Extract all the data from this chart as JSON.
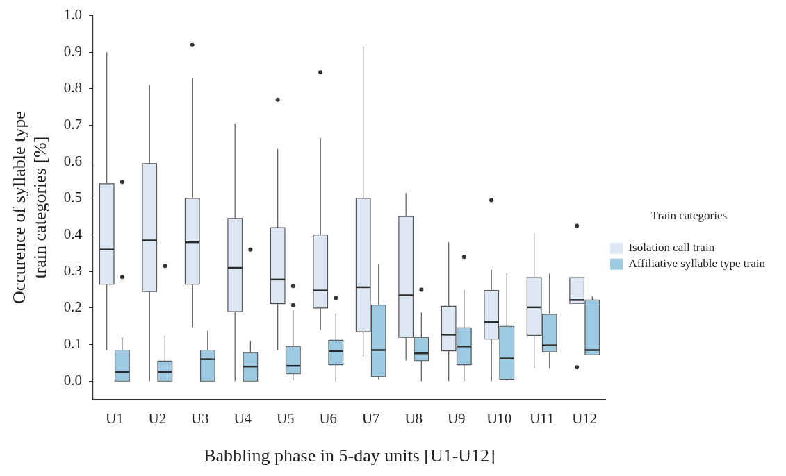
{
  "chart_data": {
    "type": "box",
    "xlabel": "Babbling phase in 5-day units [U1-U12]",
    "ylabel": "Occurence of syllable type train categories [%]",
    "legend_title": "Train categories",
    "legend": "right",
    "grid": false,
    "categories": [
      "U1",
      "U2",
      "U3",
      "U4",
      "U5",
      "U6",
      "U7",
      "U8",
      "U9",
      "U10",
      "U11",
      "U12"
    ],
    "ylim": [
      -0.05,
      1.0
    ],
    "yticks": [
      {
        "value": 0,
        "label": "0.0"
      },
      0.1,
      0.2,
      0.3,
      0.4,
      0.5,
      0.6,
      0.7,
      0.8,
      0.9,
      {
        "value": 1,
        "label": "1.0"
      }
    ],
    "series": [
      {
        "name": "Isolation call train",
        "color": "#dde8f4",
        "boxes": [
          {
            "low": 0.085,
            "q1": 0.265,
            "median": 0.36,
            "q3": 0.54,
            "high": 0.9
          },
          {
            "low": 0.0,
            "q1": 0.245,
            "median": 0.385,
            "q3": 0.595,
            "high": 0.81
          },
          {
            "low": 0.148,
            "q1": 0.265,
            "median": 0.38,
            "q3": 0.5,
            "high": 0.83,
            "outliers": [
              0.92
            ]
          },
          {
            "low": 0.0,
            "q1": 0.19,
            "median": 0.31,
            "q3": 0.445,
            "high": 0.705
          },
          {
            "low": 0.085,
            "q1": 0.212,
            "median": 0.278,
            "q3": 0.42,
            "high": 0.635,
            "outliers": [
              0.77
            ]
          },
          {
            "low": 0.14,
            "q1": 0.2,
            "median": 0.248,
            "q3": 0.4,
            "high": 0.665,
            "outliers": [
              0.845
            ]
          },
          {
            "low": 0.068,
            "q1": 0.135,
            "median": 0.257,
            "q3": 0.5,
            "high": 0.915
          },
          {
            "low": 0.057,
            "q1": 0.12,
            "median": 0.235,
            "q3": 0.45,
            "high": 0.515
          },
          {
            "low": 0.0,
            "q1": 0.083,
            "median": 0.127,
            "q3": 0.205,
            "high": 0.38
          },
          {
            "low": 0.0,
            "q1": 0.115,
            "median": 0.162,
            "q3": 0.248,
            "high": 0.305,
            "outliers": [
              0.495
            ]
          },
          {
            "low": 0.035,
            "q1": 0.125,
            "median": 0.202,
            "q3": 0.283,
            "high": 0.405
          },
          {
            "low": 0.213,
            "q1": 0.213,
            "median": 0.222,
            "q3": 0.283,
            "high": 0.283,
            "outliers": [
              0.425,
              0.038
            ]
          }
        ]
      },
      {
        "name": "Affiliative syllable type train",
        "color": "#9ecae1",
        "boxes": [
          {
            "low": 0.0,
            "q1": 0.0,
            "median": 0.025,
            "q3": 0.085,
            "high": 0.12,
            "outliers": [
              0.285,
              0.545
            ]
          },
          {
            "low": 0.0,
            "q1": 0.0,
            "median": 0.025,
            "q3": 0.055,
            "high": 0.125,
            "outliers": [
              0.315
            ]
          },
          {
            "low": 0.0,
            "q1": 0.0,
            "median": 0.06,
            "q3": 0.085,
            "high": 0.138
          },
          {
            "low": 0.0,
            "q1": 0.0,
            "median": 0.04,
            "q3": 0.078,
            "high": 0.11,
            "outliers": [
              0.36
            ]
          },
          {
            "low": 0.002,
            "q1": 0.02,
            "median": 0.042,
            "q3": 0.095,
            "high": 0.195,
            "outliers": [
              0.208,
              0.26
            ]
          },
          {
            "low": 0.0,
            "q1": 0.045,
            "median": 0.082,
            "q3": 0.112,
            "high": 0.185,
            "outliers": [
              0.228
            ]
          },
          {
            "low": 0.005,
            "q1": 0.012,
            "median": 0.085,
            "q3": 0.208,
            "high": 0.32
          },
          {
            "low": 0.0,
            "q1": 0.056,
            "median": 0.076,
            "q3": 0.12,
            "high": 0.188,
            "outliers": [
              0.25
            ]
          },
          {
            "low": 0.0,
            "q1": 0.045,
            "median": 0.095,
            "q3": 0.146,
            "high": 0.25,
            "outliers": [
              0.34
            ]
          },
          {
            "low": 0.002,
            "q1": 0.005,
            "median": 0.062,
            "q3": 0.15,
            "high": 0.295
          },
          {
            "low": 0.035,
            "q1": 0.08,
            "median": 0.098,
            "q3": 0.183,
            "high": 0.295
          },
          {
            "low": 0.072,
            "q1": 0.072,
            "median": 0.085,
            "q3": 0.222,
            "high": 0.232
          }
        ]
      }
    ]
  }
}
